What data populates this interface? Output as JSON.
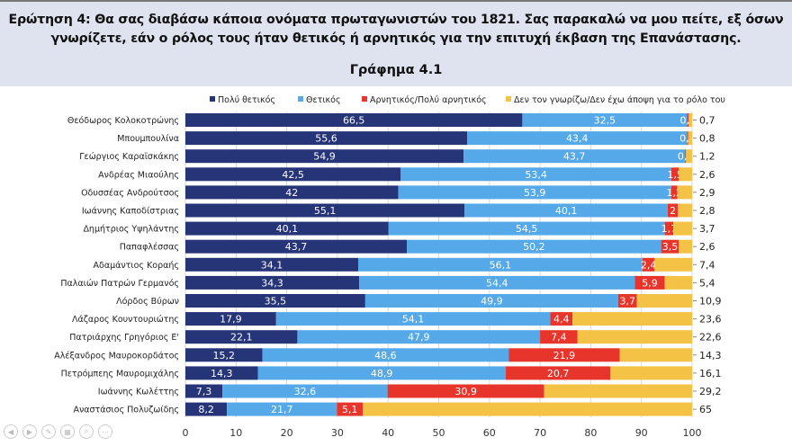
{
  "header": {
    "question": "Ερώτηση 4: Θα σας διαβάσω κάποια ονόματα πρωταγωνιστών του 1821. Σας παρακαλώ να μου πείτε, εξ όσων γνωρίζετε, εάν ο ρόλος τους ήταν θετικός ή αρνητικός για την επιτυχή έκβαση της Επανάστασης.",
    "chart_title": "Γράφημα 4.1"
  },
  "chart_data": {
    "type": "bar",
    "orientation": "horizontal",
    "stacked": true,
    "title": "Γράφημα 4.1",
    "legend_position": "top",
    "grid": true,
    "xlim": [
      0,
      100
    ],
    "xticks": [
      0,
      10,
      20,
      30,
      40,
      50,
      60,
      70,
      80,
      90,
      100
    ],
    "categories": [
      "Θεόδωρος Κολοκοτρώνης",
      "Μπουμπουλίνα",
      "Γεώργιος Καραϊσκάκης",
      "Ανδρέας Μιαούλης",
      "Οδυσσέας Ανδρούτσος",
      "Ιωάννης Καποδίστριας",
      "Δημήτριος Υψηλάντης",
      "Παπαφλέσσας",
      "Αδαμάντιος Κοραής",
      "Παλαιών Πατρών Γερμανός",
      "Λόρδος Βύρων",
      "Λάζαρος Κουντουριώτης",
      "Πατριάρχης Γρηγόριος Ε'",
      "Αλέξανδρος Μαυροκορδάτος",
      "Πετρόμπεης Μαυρομιχάλης",
      "Ιωάννης Κωλέττης",
      "Αναστάσιος Πολυζωίδης"
    ],
    "series": [
      {
        "name": "Πολύ θετικός",
        "color": "#263478",
        "values": [
          66.5,
          55.6,
          54.9,
          42.5,
          42,
          55.1,
          40.1,
          43.7,
          34.1,
          34.3,
          35.5,
          17.9,
          22.1,
          15.2,
          14.3,
          7.3,
          8.2
        ]
      },
      {
        "name": "Θετικός",
        "color": "#55a9e8",
        "values": [
          32.5,
          43.4,
          43.7,
          53.4,
          53.9,
          40.1,
          54.5,
          50.2,
          56.1,
          54.4,
          49.9,
          54.1,
          47.9,
          48.6,
          48.9,
          32.6,
          21.7
        ]
      },
      {
        "name": "Αρνητικός/Πολύ αρνητικός",
        "color": "#e8352b",
        "values": [
          0.3,
          0.2,
          0.2,
          1.5,
          1.2,
          2,
          1.7,
          3.5,
          2.4,
          5.9,
          3.7,
          4.4,
          7.4,
          21.9,
          20.7,
          30.9,
          5.1
        ]
      },
      {
        "name": "Δεν τον γνωρίζω/Δεν έχω άποψη για το ρόλο του",
        "color": "#f4c244",
        "values": [
          0.7,
          0.8,
          1.2,
          2.6,
          2.9,
          2.8,
          3.7,
          2.6,
          7.4,
          5.4,
          10.9,
          23.6,
          22.6,
          14.3,
          16.1,
          29.2,
          65
        ]
      }
    ]
  }
}
